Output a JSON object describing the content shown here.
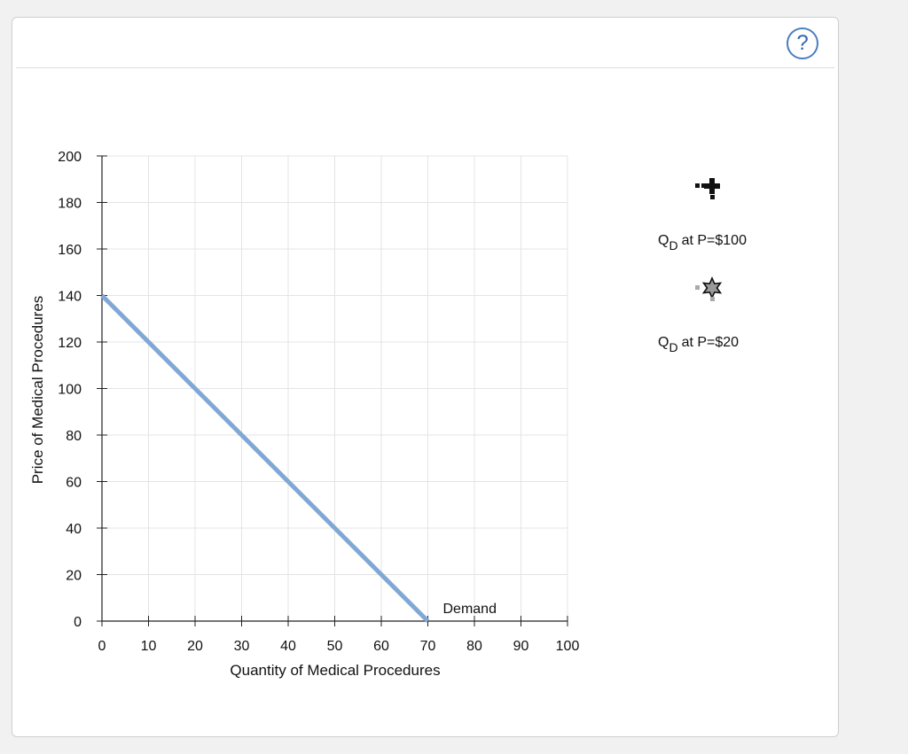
{
  "help_button": {
    "label": "?"
  },
  "chart_data": {
    "type": "line",
    "xlabel": "Quantity of Medical Procedures",
    "ylabel": "Price of Medical Procedures",
    "xlim": [
      0,
      100
    ],
    "ylim": [
      0,
      200
    ],
    "x_ticks": [
      0,
      10,
      20,
      30,
      40,
      50,
      60,
      70,
      80,
      90,
      100
    ],
    "y_ticks": [
      0,
      20,
      40,
      60,
      80,
      100,
      120,
      140,
      160,
      180,
      200
    ],
    "grid": true,
    "series": [
      {
        "name": "Demand",
        "color": "#7fa8d4",
        "points": [
          {
            "x": 0,
            "y": 140
          },
          {
            "x": 70,
            "y": 0
          }
        ]
      }
    ]
  },
  "tools": [
    {
      "id": "qd-100",
      "marker": "plus-marker",
      "label_main": "Q",
      "label_sub": "D",
      "label_rest": "at P=$100",
      "color": "#111111"
    },
    {
      "id": "qd-20",
      "marker": "star-marker",
      "label_main": "Q",
      "label_sub": "D",
      "label_rest": "at P=$20",
      "color": "#111111"
    }
  ]
}
